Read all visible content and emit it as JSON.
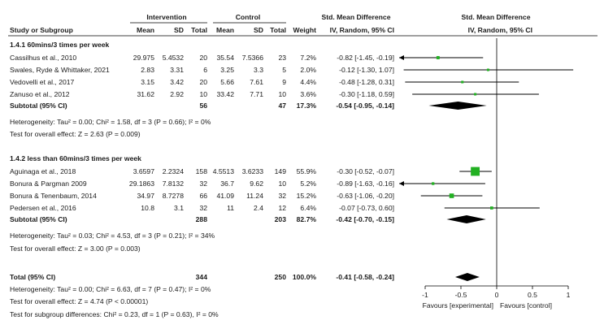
{
  "headers": {
    "study": "Study or Subgroup",
    "group1": "Intervention",
    "group2": "Control",
    "mean": "Mean",
    "sd": "SD",
    "total": "Total",
    "weight": "Weight",
    "smd_title": "Std. Mean Difference",
    "smd_sub": "IV, Random, 95% CI",
    "plot_title": "Std. Mean Difference",
    "plot_sub": "IV, Random, 95% CI"
  },
  "colors": {
    "square": "#22b022",
    "diamond": "#000000",
    "line": "#000000"
  },
  "chart_data": {
    "type": "forest",
    "x_axis": {
      "min": -1,
      "max": 1,
      "ticks": [
        "-1",
        "-0.5",
        "0",
        "0.5",
        "1"
      ],
      "tick_values": [
        -1,
        -0.5,
        0,
        0.5,
        1
      ]
    },
    "favours_left": "Favours [experimental]",
    "favours_right": "Favours [control]",
    "subgroups": [
      {
        "title": "1.4.1 60mins/3 times per week",
        "studies": [
          {
            "name": "Cassilhus et al., 2010",
            "mean1": "29.975",
            "sd1": "5.4532",
            "n1": "20",
            "mean2": "35.54",
            "sd2": "7.5366",
            "n2": "23",
            "weight": "7.2%",
            "ci_text": "-0.82 [-1.45, -0.19]",
            "est": -0.82,
            "lo": -1.45,
            "hi": -0.19,
            "w": 7.2
          },
          {
            "name": "Swales, Ryde & Whittaker, 2021",
            "mean1": "2.83",
            "sd1": "3.31",
            "n1": "6",
            "mean2": "3.25",
            "sd2": "3.3",
            "n2": "5",
            "weight": "2.0%",
            "ci_text": "-0.12 [-1.30, 1.07]",
            "est": -0.12,
            "lo": -1.3,
            "hi": 1.07,
            "w": 2.0
          },
          {
            "name": "Vedovelli et al., 2017",
            "mean1": "3.15",
            "sd1": "3.42",
            "n1": "20",
            "mean2": "5.66",
            "sd2": "7.61",
            "n2": "9",
            "weight": "4.4%",
            "ci_text": "-0.48 [-1.28, 0.31]",
            "est": -0.48,
            "lo": -1.28,
            "hi": 0.31,
            "w": 4.4
          },
          {
            "name": "Zanuso et al., 2012",
            "mean1": "31.62",
            "sd1": "2.92",
            "n1": "10",
            "mean2": "33.42",
            "sd2": "7.71",
            "n2": "10",
            "weight": "3.6%",
            "ci_text": "-0.30 [-1.18, 0.59]",
            "est": -0.3,
            "lo": -1.18,
            "hi": 0.59,
            "w": 3.6
          }
        ],
        "subtotal": {
          "label": "Subtotal (95% CI)",
          "n1": "56",
          "n2": "47",
          "weight": "17.3%",
          "ci_text": "-0.54 [-0.95, -0.14]",
          "est": -0.54,
          "lo": -0.95,
          "hi": -0.14
        },
        "heterogeneity": "Heterogeneity: Tau² = 0.00; Chi² = 1.58, df = 3 (P = 0.66); I² = 0%",
        "overall_effect": "Test for overall effect: Z = 2.63 (P = 0.009)"
      },
      {
        "title": "1.4.2 less than 60mins/3 times per week",
        "studies": [
          {
            "name": "Aguinaga et al., 2018",
            "mean1": "3.6597",
            "sd1": "2.2324",
            "n1": "158",
            "mean2": "4.5513",
            "sd2": "3.6233",
            "n2": "149",
            "weight": "55.9%",
            "ci_text": "-0.30 [-0.52, -0.07]",
            "est": -0.3,
            "lo": -0.52,
            "hi": -0.07,
            "w": 55.9
          },
          {
            "name": "Bonura & Pargman 2009",
            "mean1": "29.1863",
            "sd1": "7.8132",
            "n1": "32",
            "mean2": "36.7",
            "sd2": "9.62",
            "n2": "10",
            "weight": "5.2%",
            "ci_text": "-0.89 [-1.63, -0.16]",
            "est": -0.89,
            "lo": -1.63,
            "hi": -0.16,
            "w": 5.2
          },
          {
            "name": "Bonura & Tenenbaum, 2014",
            "mean1": "34.97",
            "sd1": "8.7278",
            "n1": "66",
            "mean2": "41.09",
            "sd2": "11.24",
            "n2": "32",
            "weight": "15.2%",
            "ci_text": "-0.63 [-1.06, -0.20]",
            "est": -0.63,
            "lo": -1.06,
            "hi": -0.2,
            "w": 15.2
          },
          {
            "name": "Pedersen et al., 2016",
            "mean1": "10.8",
            "sd1": "3.1",
            "n1": "32",
            "mean2": "11",
            "sd2": "2.4",
            "n2": "12",
            "weight": "6.4%",
            "ci_text": "-0.07 [-0.73, 0.60]",
            "est": -0.07,
            "lo": -0.73,
            "hi": 0.6,
            "w": 6.4
          }
        ],
        "subtotal": {
          "label": "Subtotal (95% CI)",
          "n1": "288",
          "n2": "203",
          "weight": "82.7%",
          "ci_text": "-0.42 [-0.70, -0.15]",
          "est": -0.42,
          "lo": -0.7,
          "hi": -0.15
        },
        "heterogeneity": "Heterogeneity: Tau² = 0.03; Chi² = 4.53, df = 3 (P = 0.21); I² = 34%",
        "overall_effect": "Test for overall effect: Z = 3.00 (P = 0.003)"
      }
    ],
    "total": {
      "label": "Total (95% CI)",
      "n1": "344",
      "n2": "250",
      "weight": "100.0%",
      "ci_text": "-0.41 [-0.58, -0.24]",
      "est": -0.41,
      "lo": -0.58,
      "hi": -0.24
    },
    "total_notes": [
      "Heterogeneity: Tau² = 0.00; Chi² = 6.63, df = 7 (P = 0.47); I² = 0%",
      "Test for overall effect: Z = 4.74 (P < 0.00001)",
      "Test for subgroup differences: Chi² = 0.23, df = 1 (P = 0.63), I² = 0%"
    ]
  }
}
